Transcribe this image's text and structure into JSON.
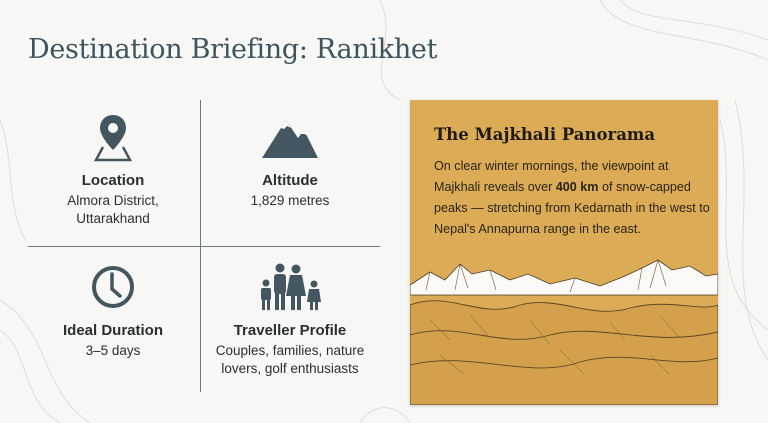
{
  "title": "Destination Briefing: Ranikhet",
  "facts": [
    {
      "icon": "map-pin-icon",
      "label": "Location",
      "value_lines": [
        "Almora District,",
        "Uttarakhand"
      ]
    },
    {
      "icon": "mountain-icon",
      "label": "Altitude",
      "value_lines": [
        "1,829 metres"
      ]
    },
    {
      "icon": "clock-icon",
      "label": "Ideal Duration",
      "value_lines": [
        "3–5 days"
      ]
    },
    {
      "icon": "family-icon",
      "label": "Traveller Profile",
      "value_lines": [
        "Couples, families, nature",
        "lovers, golf enthusiasts"
      ]
    }
  ],
  "panel": {
    "title": "The Majkhali Panorama",
    "text_before": "On clear winter mornings, the viewpoint at Majkhali reveals over ",
    "text_bold": "400 km",
    "text_after": " of snow-capped peaks — stretching from Kedarnath in the west to Nepal's Annapurna range in the east.",
    "background_color": "#dcab55"
  },
  "colors": {
    "icon": "#44565f",
    "title": "#3e5360"
  }
}
